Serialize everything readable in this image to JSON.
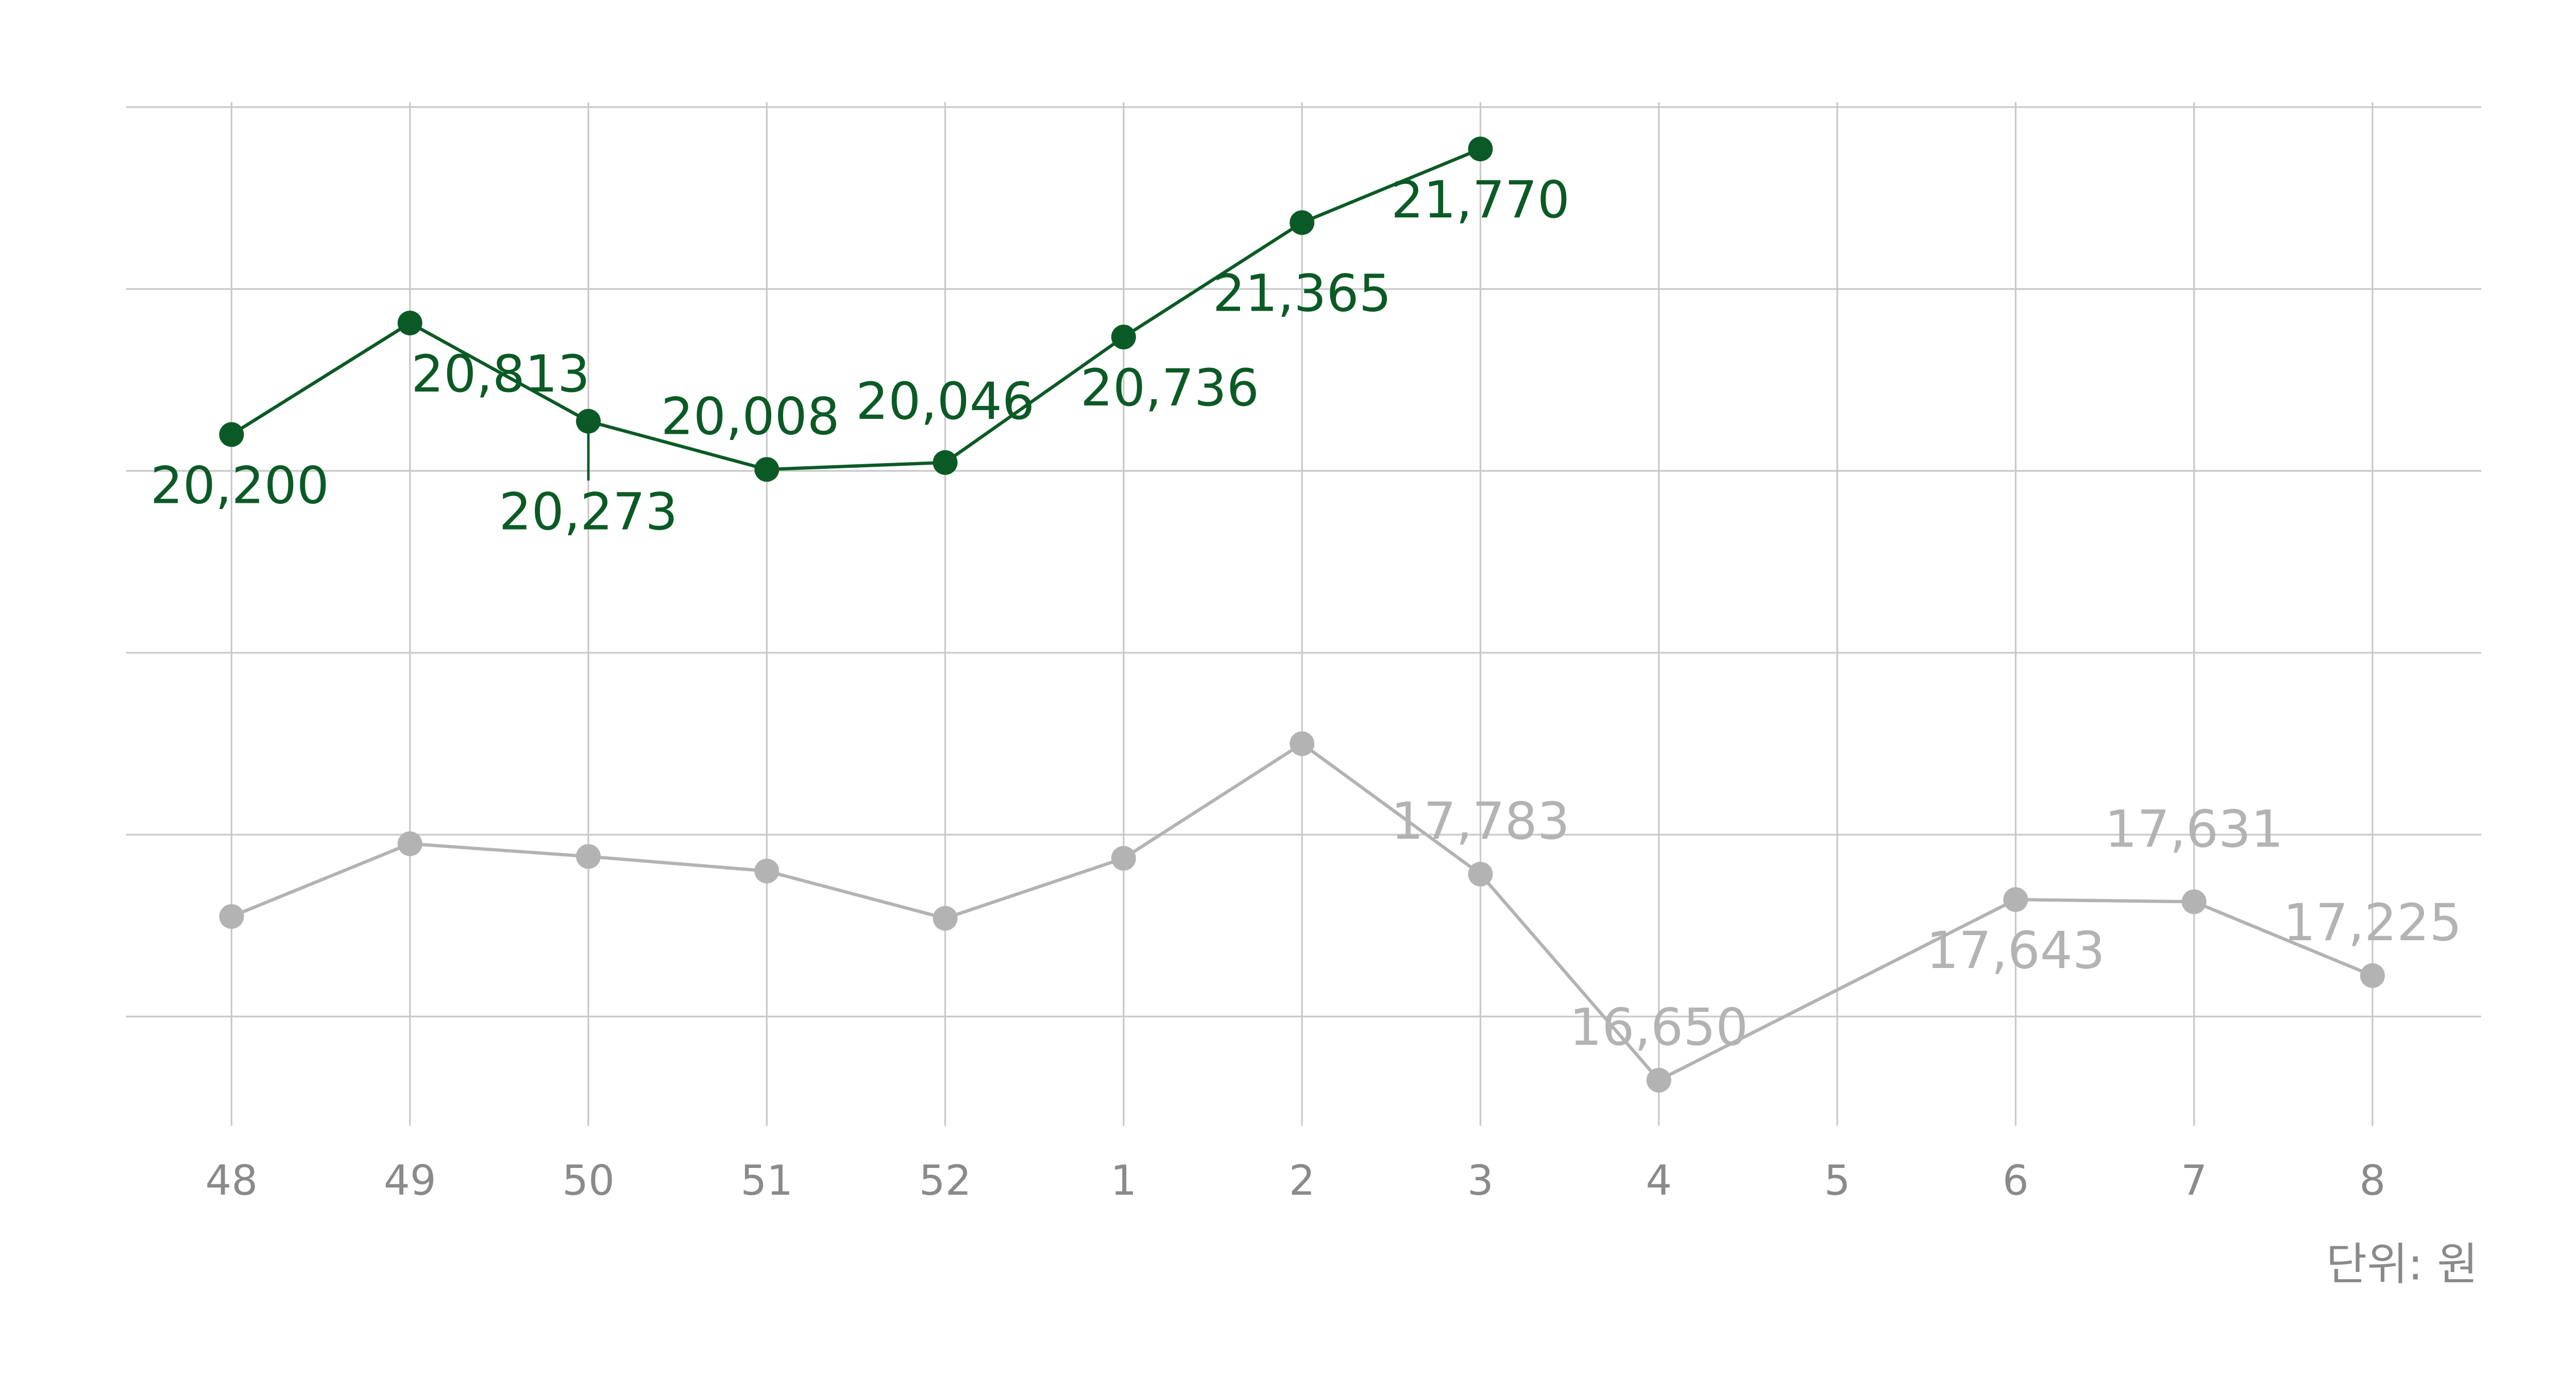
{
  "chart_data": {
    "type": "line",
    "categories": [
      "48",
      "49",
      "50",
      "51",
      "52",
      "1",
      "2",
      "3",
      "4",
      "5",
      "6",
      "7",
      "8"
    ],
    "series": [
      {
        "color": "#0b5a25",
        "values": [
          20200,
          20813,
          20273,
          20008,
          20046,
          20736,
          21365,
          21770,
          null,
          null,
          null,
          null,
          null
        ],
        "value_labels": [
          "20,200",
          "20,813",
          "20,273",
          "20,008",
          "20,046",
          "20,736",
          "21,365",
          "21,770",
          null,
          null,
          null,
          null,
          null
        ]
      },
      {
        "color": "#b3b3b3",
        "values": [
          17550,
          17950,
          17880,
          17800,
          17540,
          17870,
          18500,
          17783,
          16650,
          null,
          17643,
          17631,
          17225
        ],
        "value_labels": [
          null,
          null,
          null,
          null,
          null,
          null,
          null,
          "17,783",
          "16,650",
          null,
          "17,643",
          "17,631",
          "17,225"
        ]
      }
    ],
    "ylim": [
      16400,
      22000
    ],
    "yticks": [
      17000,
      18000,
      19000,
      20000,
      21000,
      22000
    ],
    "grid": true,
    "unit_note": "단위: 원"
  }
}
